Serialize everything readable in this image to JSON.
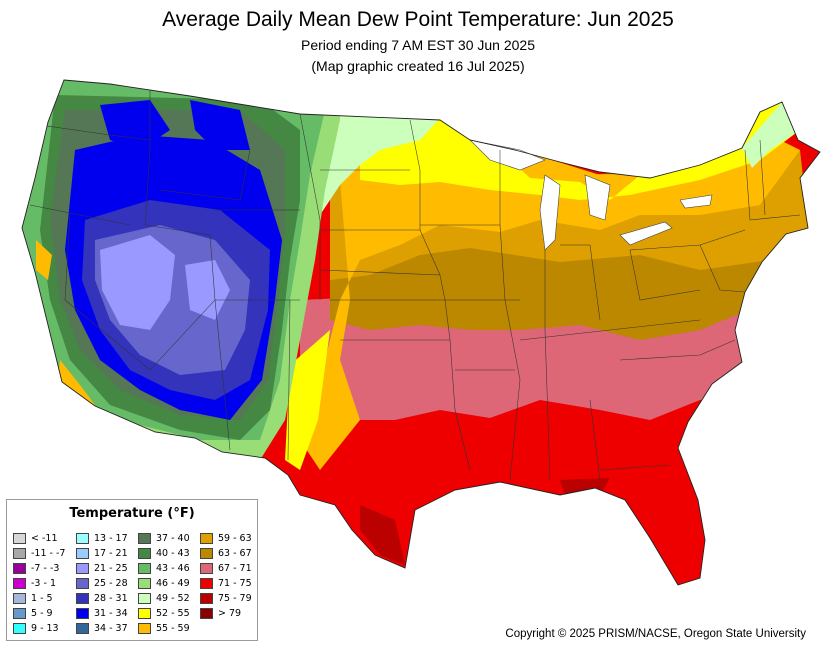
{
  "title": "Average Daily Mean Dew Point Temperature: Jun 2025",
  "subtitle1": "Period ending 7 AM EST 30 Jun 2025",
  "subtitle2": "(Map graphic created 16 Jul 2025)",
  "legend": {
    "title": "Temperature (°F)",
    "items": [
      {
        "label": "< -11",
        "color": "#d7d7d7"
      },
      {
        "label": "-11 - -7",
        "color": "#a8a8a8"
      },
      {
        "label": "-7 - -3",
        "color": "#990099"
      },
      {
        "label": "-3 - 1",
        "color": "#cc00cc"
      },
      {
        "label": "1 - 5",
        "color": "#a4b8dc"
      },
      {
        "label": "5 - 9",
        "color": "#6699cc"
      },
      {
        "label": "9 - 13",
        "color": "#33ffff"
      },
      {
        "label": "13 - 17",
        "color": "#99ffff"
      },
      {
        "label": "17 - 21",
        "color": "#99ccff"
      },
      {
        "label": "21 - 25",
        "color": "#9999ff"
      },
      {
        "label": "25 - 28",
        "color": "#6666cc"
      },
      {
        "label": "28 - 31",
        "color": "#3333bb"
      },
      {
        "label": "31 - 34",
        "color": "#0000ee"
      },
      {
        "label": "34 - 37",
        "color": "#336699"
      },
      {
        "label": "37 - 40",
        "color": "#557755"
      },
      {
        "label": "40 - 43",
        "color": "#448844"
      },
      {
        "label": "43 - 46",
        "color": "#66bb66"
      },
      {
        "label": "46 - 49",
        "color": "#99dd77"
      },
      {
        "label": "49 - 52",
        "color": "#ccffbb"
      },
      {
        "label": "52 - 55",
        "color": "#ffff00"
      },
      {
        "label": "55 - 59",
        "color": "#ffbb00"
      },
      {
        "label": "59 - 63",
        "color": "#dda000"
      },
      {
        "label": "63 - 67",
        "color": "#bb8800"
      },
      {
        "label": "67 - 71",
        "color": "#dd6677"
      },
      {
        "label": "71 - 75",
        "color": "#ee0000"
      },
      {
        "label": "75 - 79",
        "color": "#bb0000"
      },
      {
        "label": "> 79",
        "color": "#880000"
      }
    ]
  },
  "copyright": "Copyright © 2025 PRISM/NACSE, Oregon State University"
}
